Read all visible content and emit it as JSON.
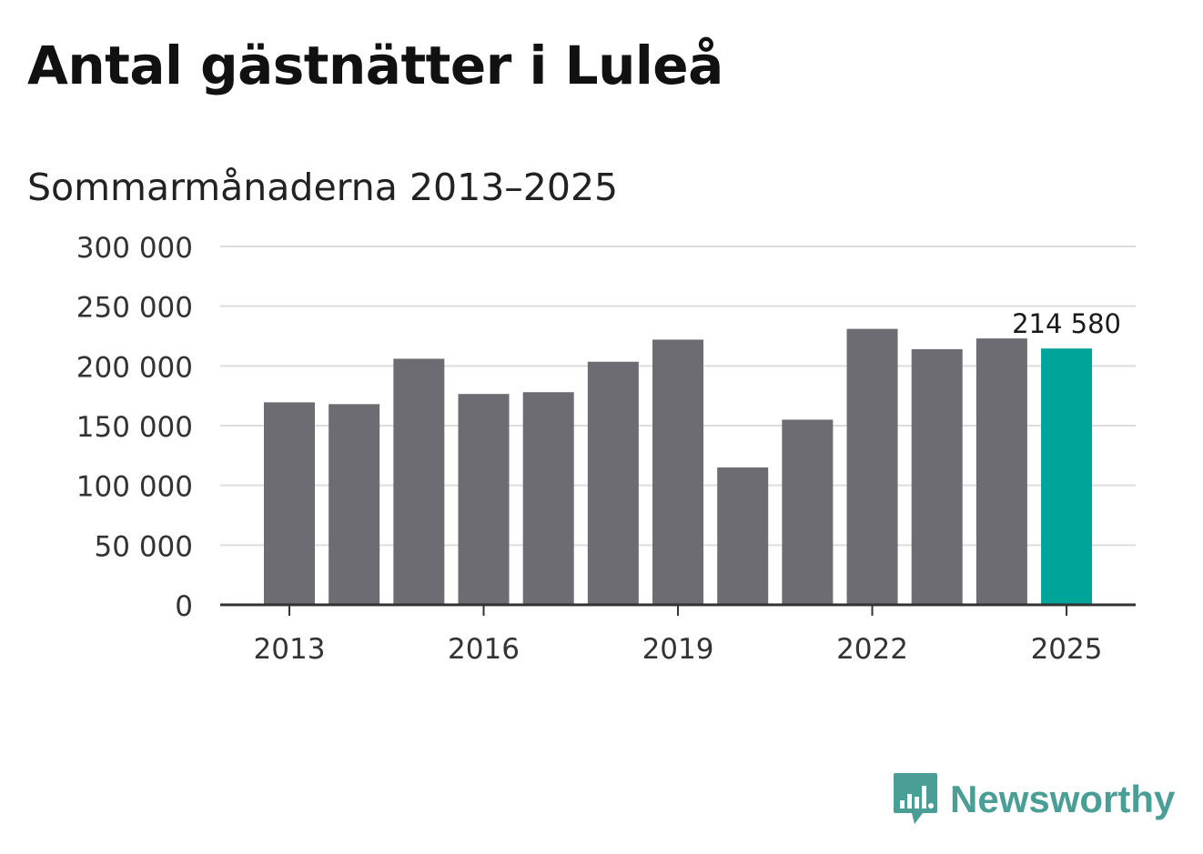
{
  "header": {
    "title": "Antal gästnätter i Luleå",
    "subtitle": "Sommarmånaderna 2013–2025"
  },
  "colors": {
    "bar": "#6d6c72",
    "highlight": "#00a499",
    "grid": "#dddddd",
    "axis": "#333333",
    "brand": "#4a9e96"
  },
  "brand": {
    "name": "Newsworthy",
    "icon": "bar-chart-speech-bubble-icon"
  },
  "chart_data": {
    "type": "bar",
    "categories": [
      "2013",
      "2014",
      "2015",
      "2016",
      "2017",
      "2018",
      "2019",
      "2020",
      "2021",
      "2022",
      "2023",
      "2024",
      "2025"
    ],
    "values": [
      169500,
      168000,
      206000,
      176500,
      178000,
      203500,
      222000,
      115000,
      155000,
      231000,
      214000,
      223000,
      214580
    ],
    "highlight_index": 12,
    "x_tick_labels": [
      "2013",
      "2016",
      "2019",
      "2022",
      "2025"
    ],
    "y_ticks": [
      0,
      50000,
      100000,
      150000,
      200000,
      250000,
      300000
    ],
    "y_tick_labels": [
      "0",
      "50 000",
      "100 000",
      "150 000",
      "200 000",
      "250 000",
      "300 000"
    ],
    "ylim": [
      0,
      300000
    ],
    "data_label": {
      "index": 12,
      "text": "214 580"
    },
    "grid": true,
    "legend": "none",
    "xlabel": "",
    "ylabel": ""
  }
}
